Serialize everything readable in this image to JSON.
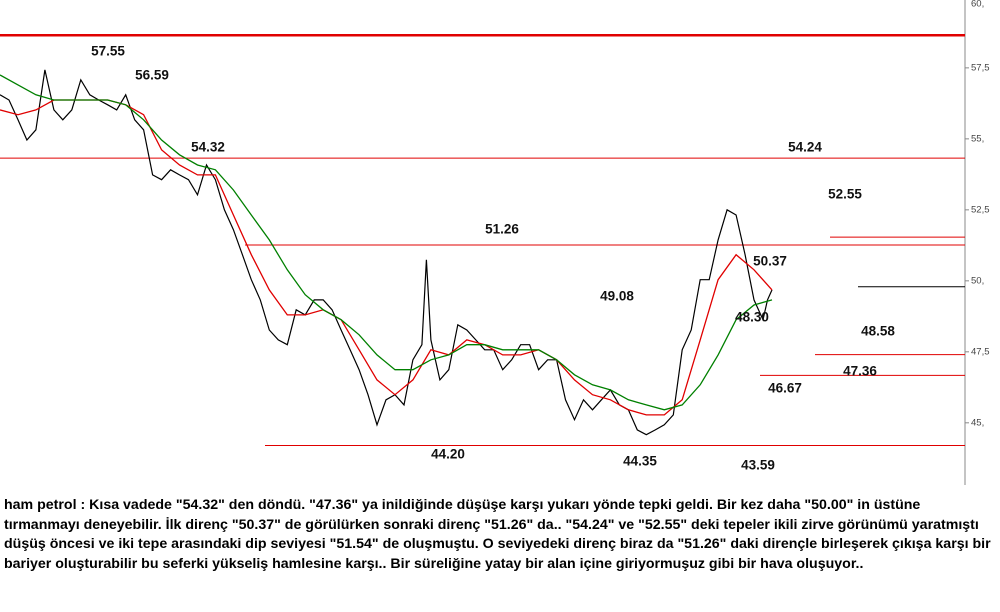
{
  "chart_data": {
    "type": "line",
    "ylim": [
      42.81,
      59.89
    ],
    "yticks": [
      {
        "value": 45,
        "label": "45,"
      },
      {
        "value": 47.5,
        "label": "47,5"
      },
      {
        "value": 50,
        "label": "50,"
      },
      {
        "value": 52.5,
        "label": "52,5"
      },
      {
        "value": 55,
        "label": "55,"
      },
      {
        "value": 57.5,
        "label": "57,5"
      },
      {
        "value": 60,
        "label": "60,"
      }
    ],
    "xlim": [
      0,
      107.5
    ],
    "series": [
      {
        "color": "#000000",
        "x": [
          0,
          1,
          2,
          3,
          4,
          5,
          6,
          7,
          8,
          9,
          10,
          11,
          12,
          13,
          14,
          15,
          16,
          17,
          18,
          19,
          20,
          21,
          22,
          23,
          24,
          25,
          26,
          27,
          28,
          29,
          30,
          31,
          32,
          33,
          34,
          35,
          36,
          37,
          38,
          39,
          40,
          41,
          42,
          43,
          44,
          45,
          46,
          47,
          47.5,
          48,
          49,
          50,
          51,
          52,
          53,
          54,
          55,
          56,
          57,
          58,
          59,
          60,
          61,
          62,
          63,
          64,
          65,
          66,
          67,
          68,
          69,
          70,
          71,
          72,
          73,
          74,
          75,
          76,
          77,
          78,
          79,
          80,
          81,
          82,
          83,
          84,
          85,
          85.5,
          86
        ],
        "values": [
          56.55,
          56.37,
          55.67,
          54.96,
          55.32,
          57.43,
          56.02,
          55.67,
          56.02,
          57.08,
          56.55,
          56.37,
          56.2,
          56.02,
          56.55,
          55.67,
          55.32,
          53.73,
          53.56,
          53.91,
          53.73,
          53.56,
          53.03,
          54.08,
          53.56,
          52.5,
          51.8,
          50.92,
          50.04,
          49.33,
          48.27,
          47.92,
          47.75,
          48.98,
          48.8,
          49.33,
          49.33,
          48.98,
          48.27,
          47.57,
          46.87,
          45.99,
          44.93,
          45.81,
          45.99,
          45.63,
          47.22,
          47.75,
          50.74,
          47.92,
          46.51,
          46.87,
          48.45,
          48.27,
          47.92,
          47.57,
          47.57,
          46.87,
          47.22,
          47.75,
          47.75,
          46.87,
          47.22,
          47.22,
          45.81,
          45.11,
          45.81,
          45.46,
          45.81,
          46.16,
          45.63,
          45.46,
          44.75,
          44.58,
          44.75,
          44.93,
          45.28,
          47.57,
          48.27,
          50.04,
          50.04,
          51.44,
          52.5,
          52.32,
          50.92,
          49.33,
          48.63,
          49.33,
          49.68
        ]
      },
      {
        "color": "#e00000",
        "x": [
          0,
          2,
          4,
          6,
          8,
          10,
          12,
          14,
          16,
          18,
          20,
          22,
          24,
          26,
          28,
          30,
          32,
          34,
          36,
          38,
          40,
          42,
          44,
          46,
          48,
          50,
          52,
          54,
          56,
          58,
          60,
          62,
          64,
          66,
          68,
          70,
          72,
          74,
          76,
          78,
          80,
          82,
          84,
          86
        ],
        "values": [
          56.02,
          55.85,
          56.02,
          56.37,
          56.37,
          56.37,
          56.37,
          56.2,
          55.85,
          54.61,
          54.08,
          53.73,
          53.73,
          52.32,
          50.92,
          49.68,
          48.8,
          48.8,
          48.98,
          48.63,
          47.57,
          46.51,
          45.99,
          46.51,
          47.57,
          47.39,
          47.92,
          47.75,
          47.39,
          47.39,
          47.57,
          47.22,
          46.51,
          45.99,
          45.81,
          45.46,
          45.28,
          45.28,
          45.81,
          47.92,
          50.04,
          50.92,
          50.39,
          49.68
        ]
      },
      {
        "color": "#008000",
        "x": [
          0,
          2,
          4,
          6,
          8,
          10,
          12,
          14,
          16,
          18,
          20,
          22,
          24,
          26,
          28,
          30,
          32,
          34,
          36,
          38,
          40,
          42,
          44,
          46,
          48,
          50,
          52,
          54,
          56,
          58,
          60,
          62,
          64,
          66,
          68,
          70,
          72,
          74,
          76,
          78,
          80,
          82,
          84,
          86
        ],
        "values": [
          57.25,
          56.9,
          56.55,
          56.37,
          56.37,
          56.37,
          56.37,
          56.2,
          55.67,
          54.96,
          54.44,
          54.08,
          53.91,
          53.2,
          52.32,
          51.44,
          50.39,
          49.51,
          48.98,
          48.63,
          48.1,
          47.39,
          46.87,
          46.87,
          47.22,
          47.39,
          47.75,
          47.75,
          47.57,
          47.57,
          47.57,
          47.22,
          46.69,
          46.34,
          46.16,
          45.81,
          45.63,
          45.46,
          45.63,
          46.34,
          47.39,
          48.63,
          49.15,
          49.33
        ]
      }
    ],
    "levels": [
      58.65,
      54.32,
      51.54,
      51.26,
      47.4,
      46.67,
      44.2
    ],
    "last_price": 49.79,
    "annotations": [
      "57.55",
      "56.59",
      "54.32",
      "51.26",
      "54.24",
      "52.55",
      "50.37",
      "49.08",
      "48.30",
      "48.58",
      "46.67",
      "47.36",
      "44.20",
      "44.35",
      "43.59"
    ]
  },
  "commentary": "ham petrol : Kısa vadede \"54.32\" den döndü. \"47.36\" ya inildiğinde düşüşe karşı yukarı yönde tepki geldi. Bir kez daha \"50.00\" in üstüne tırmanmayı deneyebilir. İlk direnç \"50.37\" de görülürken sonraki direnç \"51.26\" da.. \"54.24\" ve \"52.55\" deki tepeler ikili zirve görünümü yaratmıştı düşüş öncesi ve iki tepe arasındaki dip seviyesi \"51.54\" de oluşmuştu. O seviyedeki direnç biraz da \"51.26\" daki dirençle birleşerek çıkışa karşı bir bariyer oluşturabilir bu seferki yükseliş hamlesine karşı.. Bir süreliğine yatay bir alan içine giriyormuşuz gibi bir hava oluşuyor.."
}
